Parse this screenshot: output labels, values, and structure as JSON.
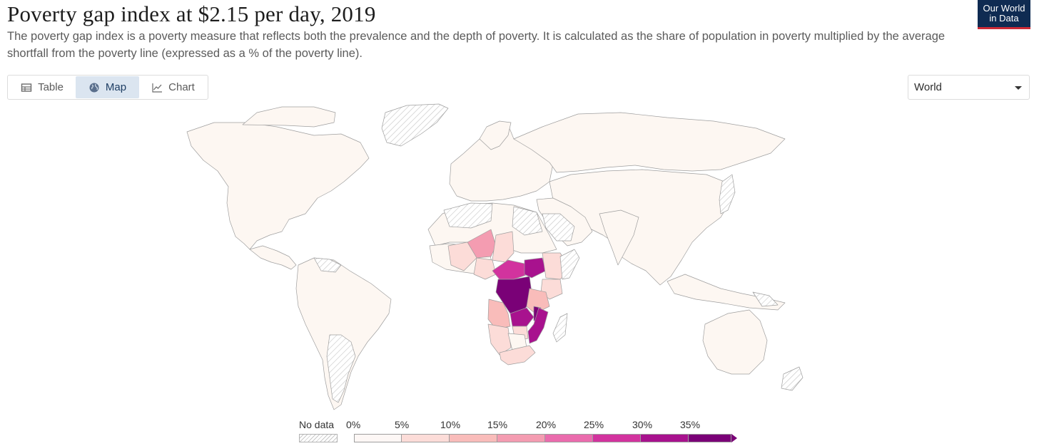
{
  "header": {
    "title": "Poverty gap index at $2.15 per day, 2019",
    "subtitle": "The poverty gap index is a poverty measure that reflects both the prevalence and the depth of poverty. It is calculated as the share of population in poverty multiplied by the average shortfall from the poverty line (expressed as a % of the poverty line).",
    "logo_line1": "Our World",
    "logo_line2": "in Data"
  },
  "tabs": [
    {
      "label": "Table",
      "icon": "table-icon",
      "active": false
    },
    {
      "label": "Map",
      "icon": "globe-icon",
      "active": true
    },
    {
      "label": "Chart",
      "icon": "line-chart-icon",
      "active": false
    }
  ],
  "region_select": {
    "value": "World"
  },
  "legend": {
    "no_data_label": "No data",
    "ticks": [
      "0%",
      "5%",
      "10%",
      "15%",
      "20%",
      "25%",
      "30%",
      "35%"
    ],
    "bins": [
      {
        "range": "0–5%",
        "color": "#fdf7f5"
      },
      {
        "range": "5–10%",
        "color": "#fcdcd8"
      },
      {
        "range": "10–15%",
        "color": "#f9bcba"
      },
      {
        "range": "15–20%",
        "color": "#f49cb1"
      },
      {
        "range": "20–25%",
        "color": "#ea6cad"
      },
      {
        "range": "25–30%",
        "color": "#d2339e"
      },
      {
        "range": "30–35%",
        "color": "#a8128e"
      },
      {
        "range": ">35%",
        "color": "#7a0177"
      }
    ]
  },
  "colors": {
    "land_default": "#fdf7f2",
    "border": "#9e9e9e",
    "active_tab_bg": "#dbe5f0",
    "logo_bg": "#0f2b52",
    "logo_accent": "#cc2a36"
  }
}
